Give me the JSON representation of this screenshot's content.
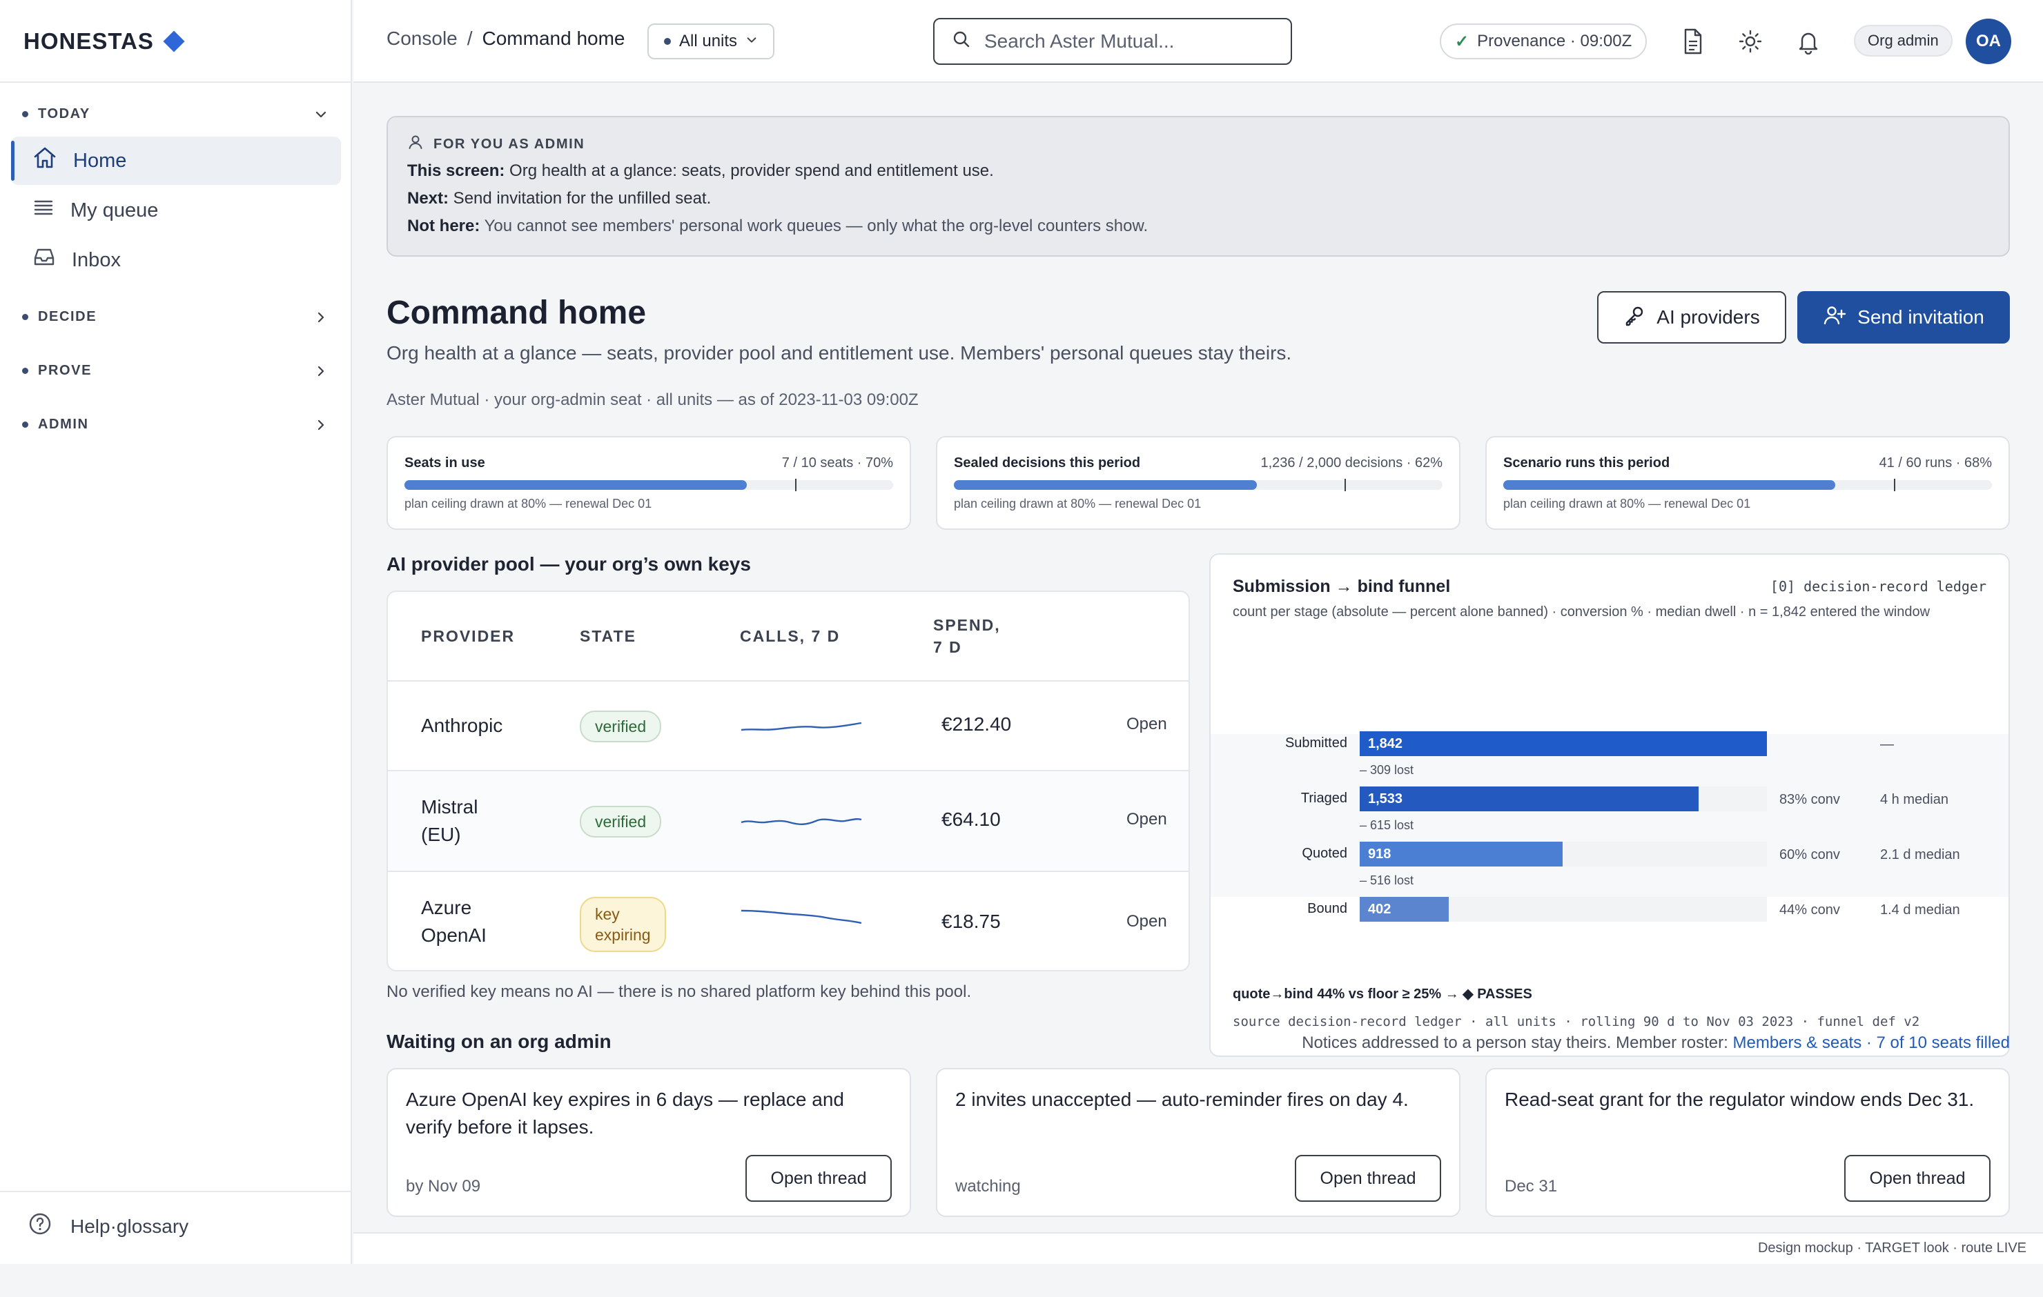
{
  "brand": {
    "name": "HONESTAS"
  },
  "sidebar": {
    "sections": [
      {
        "label": "TODAY"
      },
      {
        "label": "DECIDE"
      },
      {
        "label": "PROVE"
      },
      {
        "label": "ADMIN"
      }
    ],
    "items": [
      {
        "label": "Home",
        "icon": "home-icon"
      },
      {
        "label": "My queue",
        "icon": "list-icon"
      },
      {
        "label": "Inbox",
        "icon": "inbox-icon"
      }
    ],
    "help": "Help·glossary"
  },
  "topbar": {
    "breadcrumb_root": "Console",
    "breadcrumb_sep": "/",
    "breadcrumb_current": "Command home",
    "units_label": "All units",
    "search_placeholder": "Search Aster Mutual...",
    "provenance": "Provenance · 09:00Z",
    "role": "Org admin",
    "avatar": "OA"
  },
  "banner": {
    "heading": "FOR YOU AS ADMIN",
    "screen_label": "This screen:",
    "screen_text": " Org health at a glance: seats, provider spend and entitlement use.",
    "next_label": "Next:",
    "next_text": " Send invitation for the unfilled seat.",
    "nothere_label": "Not here:",
    "nothere_text": " You cannot see members' personal work queues — only what the org-level counters show."
  },
  "page": {
    "title": "Command home",
    "subtitle": "Org health at a glance — seats, provider pool and entitlement use. Members' personal queues stay theirs.",
    "meta": "Aster Mutual · your org-admin seat · all units — as of 2023-11-03 09:00Z",
    "ai_providers_btn": "AI providers",
    "send_invitation_btn": "Send invitation"
  },
  "kpis": [
    {
      "label": "Seats in use",
      "value": "7 / 10 seats · 70%",
      "fraction": 0.7,
      "ceiling": 0.8,
      "note": "plan ceiling drawn at 80% — renewal Dec 01"
    },
    {
      "label": "Sealed decisions this period",
      "value": "1,236 / 2,000 decisions · 62%",
      "fraction": 0.62,
      "ceiling": 0.8,
      "note": "plan ceiling drawn at 80% — renewal Dec 01"
    },
    {
      "label": "Scenario runs this period",
      "value": "41 / 60 runs · 68%",
      "fraction": 0.68,
      "ceiling": 0.8,
      "note": "plan ceiling drawn at 80% — renewal Dec 01"
    }
  ],
  "providers": {
    "title": "AI provider pool — your org’s own keys",
    "columns": [
      "PROVIDER",
      "STATE",
      "CALLS, 7 D",
      "SPEND,\n7 D"
    ],
    "rows": [
      {
        "name": "Anthropic",
        "state": "verified",
        "state_kind": "ok",
        "spend": "€212.40",
        "action": "Open"
      },
      {
        "name": "Mistral\n(EU)",
        "state": "verified",
        "state_kind": "ok",
        "spend": "€64.10",
        "action": "Open"
      },
      {
        "name": "Azure\nOpenAI",
        "state": "key\nexpiring",
        "state_kind": "warn",
        "spend": "€18.75",
        "action": "Open"
      }
    ],
    "note": "No verified key means no AI — there is no shared platform key behind this pool."
  },
  "funnel": {
    "title": "Submission → bind funnel",
    "source_tag": "[0] decision-record ledger",
    "description": "count per stage (absolute — percent alone banned) · conversion % · median dwell · n = 1,842 entered the window",
    "result": "quote→bind 44% vs floor ≥ 25% → ◆ PASSES",
    "source_line": "source decision-record ledger · all units · rolling 90 d to Nov 03 2023 · funnel def v2"
  },
  "chart_data": {
    "type": "bar",
    "categories": [
      "Submitted",
      "Triaged",
      "Quoted",
      "Bound"
    ],
    "values": [
      1842,
      1533,
      918,
      402
    ],
    "value_labels": [
      "1,842",
      "1,533",
      "918",
      "402"
    ],
    "lost": [
      "",
      "– 309 lost",
      "– 615 lost",
      "– 516 lost"
    ],
    "conversion": [
      "",
      "83% conv",
      "60% conv",
      "44% conv"
    ],
    "median_dwell": [
      "—",
      "4 h median",
      "2.1 d median",
      "1.4 d median"
    ],
    "colors": [
      "#1f5bc9",
      "#2459bf",
      "#4b7fd4",
      "#5b86cf"
    ],
    "title": "Submission → bind funnel"
  },
  "waiting": {
    "title": "Waiting on an org admin",
    "right_text": "Notices addressed to a person stay theirs. Member roster: ",
    "right_link": "Members & seats · 7 of 10 seats filled",
    "cards": [
      {
        "text": "Azure OpenAI key expires in 6 days — replace and verify before it lapses.",
        "footer": "by Nov 09",
        "button": "Open thread"
      },
      {
        "text": "2 invites unaccepted — auto-reminder fires on day 4.",
        "footer": "watching",
        "button": "Open thread"
      },
      {
        "text": "Read-seat grant for the regulator window ends Dec 31.",
        "footer": "Dec 31",
        "button": "Open thread"
      }
    ]
  },
  "footer": "Design mockup · TARGET look · route LIVE"
}
